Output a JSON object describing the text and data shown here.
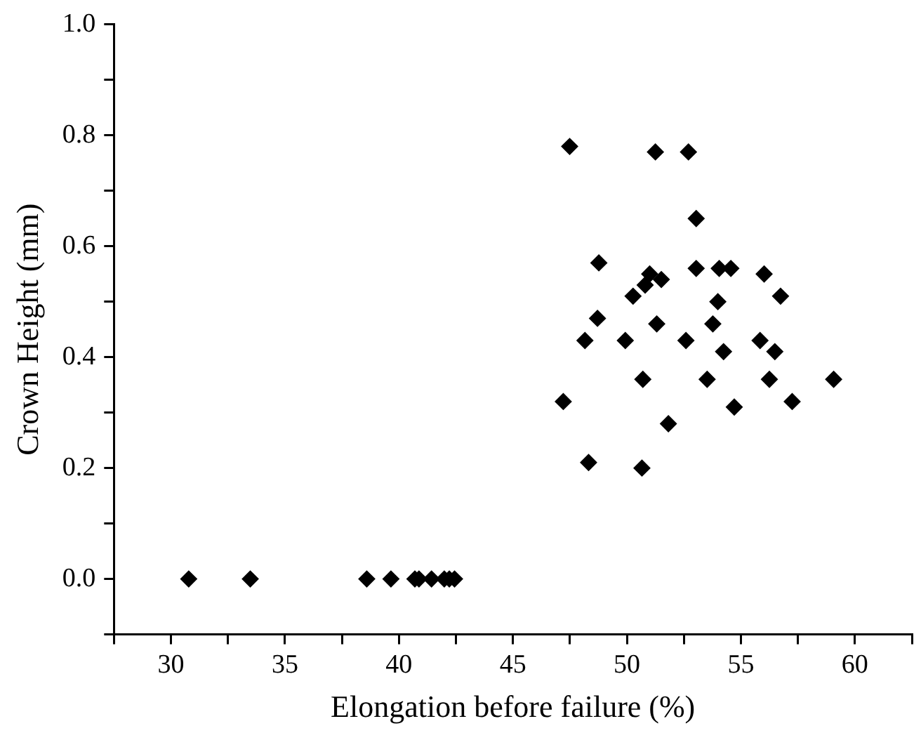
{
  "chart_data": {
    "type": "scatter",
    "xlabel": "Elongation before failure (%)",
    "ylabel": "Crown Height (mm)",
    "xlim": [
      27.5,
      62.5
    ],
    "xticks": [
      {
        "value": 27.5,
        "label": null
      },
      30,
      {
        "value": 32.5,
        "label": null
      },
      35,
      {
        "value": 37.5,
        "label": null
      },
      40,
      {
        "value": 42.5,
        "label": null
      },
      45,
      {
        "value": 47.5,
        "label": null
      },
      50,
      {
        "value": 52.5,
        "label": null
      },
      55,
      {
        "value": 57.5,
        "label": null
      },
      60,
      {
        "value": 62.5,
        "label": null
      }
    ],
    "ylim": [
      -0.1,
      1.0
    ],
    "yticks": [
      {
        "value": -0.1,
        "label": null
      },
      {
        "value": 0,
        "label": "0.0"
      },
      {
        "value": 0.1,
        "label": null
      },
      0.2,
      {
        "value": 0.3,
        "label": null
      },
      0.4,
      {
        "value": 0.5,
        "label": null
      },
      0.6,
      {
        "value": 0.7,
        "label": null
      },
      0.8,
      {
        "value": 0.9,
        "label": null
      },
      {
        "value": 1.0,
        "label": "1.0"
      }
    ],
    "marker": "diamond",
    "grid": false,
    "legend": false,
    "series": [
      {
        "color": "#000000",
        "x": [
          30.78,
          33.48,
          38.59,
          39.65,
          40.7,
          40.88,
          41.43,
          41.99,
          42.21,
          42.44,
          47.49,
          51.25,
          52.7,
          53.04,
          48.77,
          53.04,
          54.05,
          54.56,
          51.0,
          51.51,
          56.02,
          50.8,
          50.27,
          56.74,
          53.99,
          48.71,
          51.31,
          53.77,
          48.16,
          49.93,
          52.59,
          54.24,
          55.84,
          56.49,
          50.7,
          53.52,
          56.25,
          59.07,
          47.21,
          54.71,
          57.25,
          51.82,
          48.32,
          50.66
        ],
        "values": [
          0,
          0,
          0,
          0,
          0,
          0,
          0,
          0,
          0,
          0,
          0.78,
          0.77,
          0.77,
          0.65,
          0.57,
          0.56,
          0.56,
          0.56,
          0.55,
          0.54,
          0.55,
          0.53,
          0.51,
          0.51,
          0.5,
          0.47,
          0.46,
          0.46,
          0.43,
          0.43,
          0.43,
          0.41,
          0.43,
          0.41,
          0.36,
          0.36,
          0.36,
          0.36,
          0.32,
          0.31,
          0.32,
          0.28,
          0.21,
          0.2
        ]
      }
    ]
  }
}
